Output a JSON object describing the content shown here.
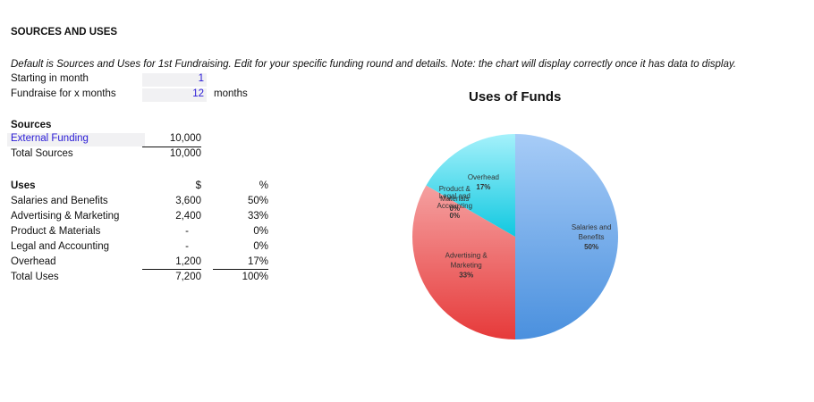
{
  "sheet": {
    "title": "SOURCES AND USES",
    "note": "Default is Sources and Uses for 1st Fundraising. Edit for your specific funding round and details. Note: the chart will display correctly once it has data to display.",
    "starting_month": {
      "label": "Starting in month",
      "value": "1"
    },
    "fundraise_months": {
      "label": "Fundraise for x months",
      "value": "12",
      "unit": "months"
    },
    "sources": {
      "heading": "Sources",
      "rows": [
        {
          "label": "External Funding",
          "value": "10,000"
        },
        {
          "label": "Total Sources",
          "value": "10,000"
        }
      ]
    },
    "uses": {
      "heading": "Uses",
      "col_dollar": "$",
      "col_pct": "%",
      "rows": [
        {
          "label": "Salaries and Benefits",
          "dollar": "3,600",
          "pct": "50%"
        },
        {
          "label": "Advertising & Marketing",
          "dollar": "2,400",
          "pct": "33%"
        },
        {
          "label": "Product & Materials",
          "dollar": "-",
          "pct": "0%"
        },
        {
          "label": "Legal and Accounting",
          "dollar": "-",
          "pct": "0%"
        },
        {
          "label": "Overhead",
          "dollar": "1,200",
          "pct": "17%"
        }
      ],
      "total": {
        "label": "Total Uses",
        "dollar": "7,200",
        "pct": "100%"
      }
    }
  },
  "chart_data": {
    "type": "pie",
    "title": "Uses of Funds",
    "categories": [
      "Salaries and Benefits",
      "Advertising & Marketing",
      "Product & Materials",
      "Legal and Accounting",
      "Overhead"
    ],
    "values": [
      3600,
      2400,
      0,
      0,
      1200
    ],
    "percent_labels": [
      "50%",
      "33%",
      "0%",
      "0%",
      "17%"
    ],
    "slice_labels": [
      [
        "Salaries and",
        "Benefits",
        "50%"
      ],
      [
        "Advertising &",
        "Marketing",
        "33%"
      ],
      [
        "Product &",
        "Materials",
        "0%"
      ],
      [
        "Legal and",
        "Accounting",
        "0%"
      ],
      [
        "Overhead",
        "17%"
      ]
    ],
    "colors": [
      [
        "#a7ccf7",
        "#4a90de"
      ],
      [
        "#f5a0a0",
        "#e63a3a"
      ],
      [
        "#cfcfcf",
        "#9a9a9a"
      ],
      [
        "#cfcfcf",
        "#9a9a9a"
      ],
      [
        "#a5f1fb",
        "#10c8e0"
      ]
    ],
    "legend": "none"
  }
}
